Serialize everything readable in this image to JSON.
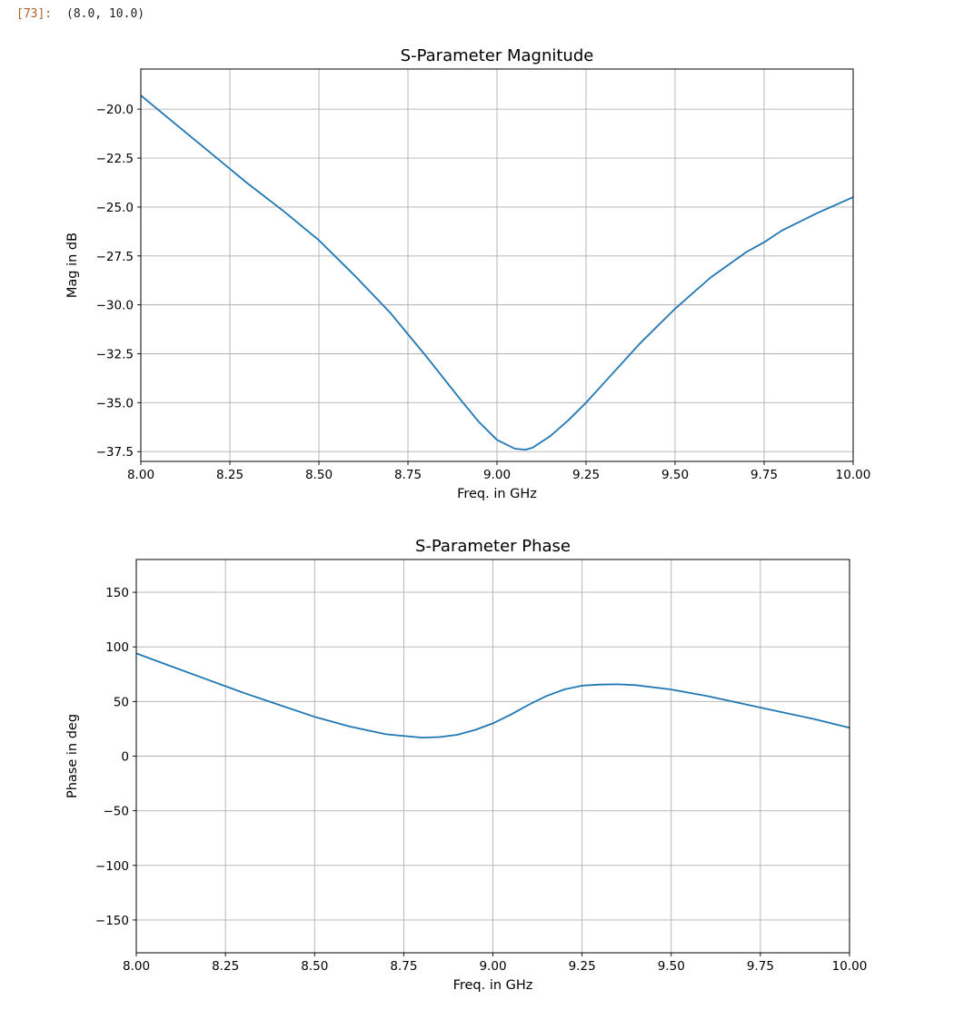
{
  "cell": {
    "prompt": "[73]:",
    "result": "(8.0, 10.0)"
  },
  "chart_data": [
    {
      "type": "line",
      "title": "S-Parameter Magnitude",
      "xlabel": "Freq. in GHz",
      "ylabel": "Mag in dB",
      "xlim": [
        8.0,
        10.0
      ],
      "ylim": [
        -38.0,
        -17.95
      ],
      "grid": true,
      "line_color": "#1f77b4",
      "xticks": [
        "8.00",
        "8.25",
        "8.50",
        "8.75",
        "9.00",
        "9.25",
        "9.50",
        "9.75",
        "10.00"
      ],
      "yticks": [
        "−20.0",
        "−22.5",
        "−25.0",
        "−27.5",
        "−30.0",
        "−32.5",
        "−35.0",
        "−37.5"
      ],
      "x": [
        8.0,
        8.1,
        8.2,
        8.3,
        8.4,
        8.5,
        8.6,
        8.7,
        8.75,
        8.8,
        8.9,
        8.95,
        9.0,
        9.05,
        9.08,
        9.1,
        9.15,
        9.2,
        9.25,
        9.3,
        9.4,
        9.5,
        9.6,
        9.7,
        9.75,
        9.8,
        9.9,
        10.0
      ],
      "y": [
        -19.3,
        -20.8,
        -22.3,
        -23.8,
        -25.2,
        -26.7,
        -28.5,
        -30.4,
        -31.5,
        -32.6,
        -34.9,
        -36.0,
        -36.9,
        -37.35,
        -37.4,
        -37.3,
        -36.7,
        -35.9,
        -35.0,
        -34.0,
        -32.0,
        -30.2,
        -28.6,
        -27.3,
        -26.8,
        -26.2,
        -25.3,
        -24.5
      ]
    },
    {
      "type": "line",
      "title": "S-Parameter Phase",
      "xlabel": "Freq. in GHz",
      "ylabel": "Phase in deg",
      "xlim": [
        8.0,
        10.0
      ],
      "ylim": [
        -180,
        180
      ],
      "grid": true,
      "line_color": "#1f77b4",
      "xticks": [
        "8.00",
        "8.25",
        "8.50",
        "8.75",
        "9.00",
        "9.25",
        "9.50",
        "9.75",
        "10.00"
      ],
      "yticks": [
        "150",
        "100",
        "50",
        "0",
        "−50",
        "−100",
        "−150"
      ],
      "x": [
        8.0,
        8.1,
        8.2,
        8.3,
        8.4,
        8.5,
        8.6,
        8.7,
        8.8,
        8.85,
        8.9,
        8.95,
        9.0,
        9.05,
        9.1,
        9.15,
        9.2,
        9.25,
        9.3,
        9.35,
        9.4,
        9.5,
        9.6,
        9.7,
        9.8,
        9.9,
        10.0
      ],
      "y": [
        94,
        82,
        70,
        58,
        47,
        36,
        27,
        20,
        17,
        17.5,
        19.5,
        24,
        30,
        38,
        47,
        55,
        61,
        64.5,
        65.5,
        65.8,
        65,
        61,
        55,
        48,
        41,
        34,
        26
      ]
    }
  ]
}
